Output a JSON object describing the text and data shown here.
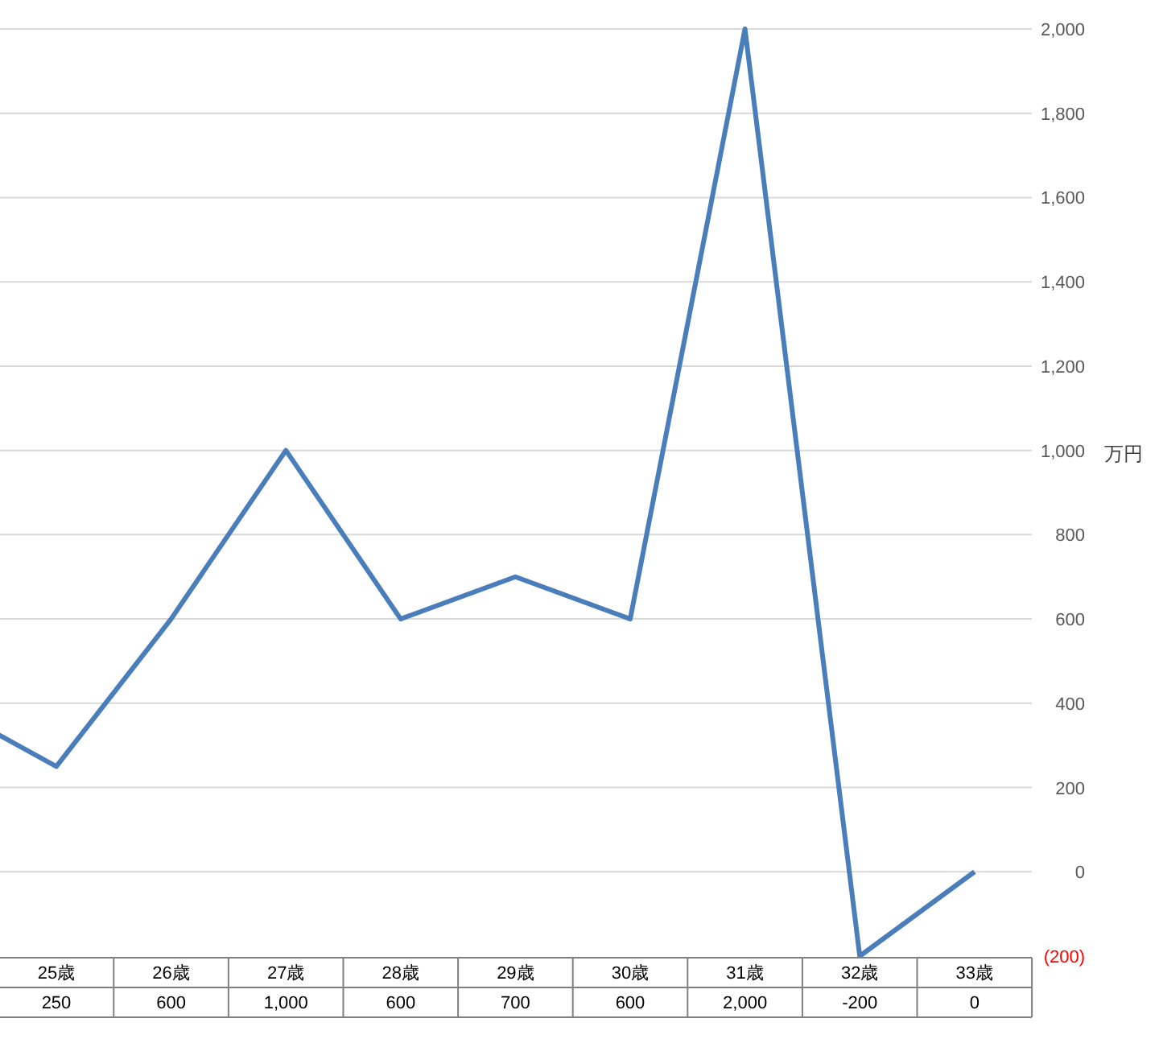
{
  "chart_data": {
    "type": "line",
    "ylabel": "万円",
    "categories": [
      null,
      "25歳",
      "26歳",
      "27歳",
      "28歳",
      "29歳",
      "30歳",
      "31歳",
      "32歳",
      "33歳"
    ],
    "values": [
      400,
      250,
      600,
      1000,
      600,
      700,
      600,
      2000,
      -200,
      0
    ],
    "value_labels": [
      null,
      "250",
      "600",
      "1,000",
      "600",
      "700",
      "600",
      "2,000",
      "-200",
      "0"
    ],
    "color": "#4a7ebb",
    "ylim": [
      -200,
      2000
    ],
    "yticks": [
      {
        "value": -200,
        "label": "(200)"
      },
      0,
      200,
      400,
      600,
      800,
      {
        "value": 1000,
        "label": "1,000"
      },
      {
        "value": 1200,
        "label": "1,200"
      },
      {
        "value": 1400,
        "label": "1,400"
      },
      {
        "value": 1600,
        "label": "1,600"
      },
      {
        "value": 1800,
        "label": "1,800"
      },
      {
        "value": 2000,
        "label": "2,000"
      }
    ],
    "grid": "y",
    "marker": "none",
    "line_style": "solid"
  }
}
